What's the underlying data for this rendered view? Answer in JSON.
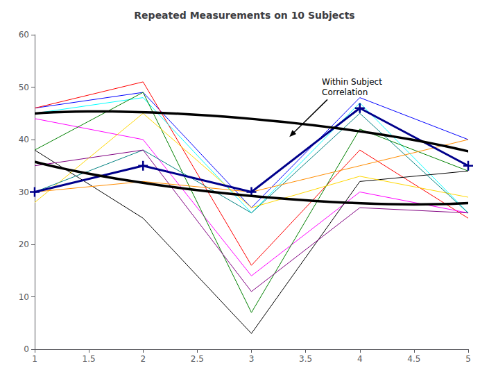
{
  "chart_data": {
    "type": "line",
    "title": "Repeated Measurements on 10 Subjects",
    "x": [
      1,
      2,
      3,
      4,
      5
    ],
    "xlim": [
      1,
      5
    ],
    "xticks": [
      1,
      1.5,
      2,
      2.5,
      3,
      3.5,
      4,
      4.5,
      5
    ],
    "ylim": [
      0,
      60
    ],
    "yticks": [
      0,
      10,
      20,
      30,
      40,
      50,
      60
    ],
    "grid": false,
    "series": [
      {
        "color": "#0000FF",
        "marker": "none",
        "values": [
          46,
          49,
          27,
          48,
          40
        ]
      },
      {
        "color": "#FF0000",
        "marker": "none",
        "values": [
          46,
          51,
          16,
          38,
          25
        ]
      },
      {
        "color": "#00FFFF",
        "marker": "none",
        "values": [
          45,
          48,
          26,
          47,
          26
        ]
      },
      {
        "color": "#FF00FF",
        "marker": "none",
        "values": [
          44,
          40,
          14,
          30,
          26
        ]
      },
      {
        "color": "#008000",
        "marker": "none",
        "values": [
          38,
          49,
          7,
          42,
          34
        ]
      },
      {
        "color": "#000000",
        "marker": "none",
        "values": [
          38,
          25,
          3,
          32,
          34
        ]
      },
      {
        "color": "#FFD700",
        "marker": "none",
        "values": [
          28,
          45,
          27,
          33,
          29
        ]
      },
      {
        "color": "#008080",
        "marker": "none",
        "values": [
          30,
          38,
          26,
          45,
          26
        ]
      },
      {
        "color": "#800080",
        "marker": "none",
        "values": [
          35,
          38,
          11,
          27,
          26
        ]
      },
      {
        "color": "#FF8C00",
        "marker": "none",
        "values": [
          30,
          32,
          30,
          35,
          40
        ]
      },
      {
        "color": "#00008B",
        "marker": "+",
        "values": [
          30,
          35,
          30,
          46,
          35
        ]
      }
    ],
    "ellipse": {
      "center": [
        3.05,
        36.5
      ],
      "width": 4.3,
      "height": 18,
      "angle": 10,
      "color": "#000000"
    },
    "annotations": [
      {
        "text": "Within Subject\nCorrelation",
        "xy": [
          3.35,
          40.5
        ],
        "xytext": [
          3.65,
          52
        ]
      }
    ]
  }
}
